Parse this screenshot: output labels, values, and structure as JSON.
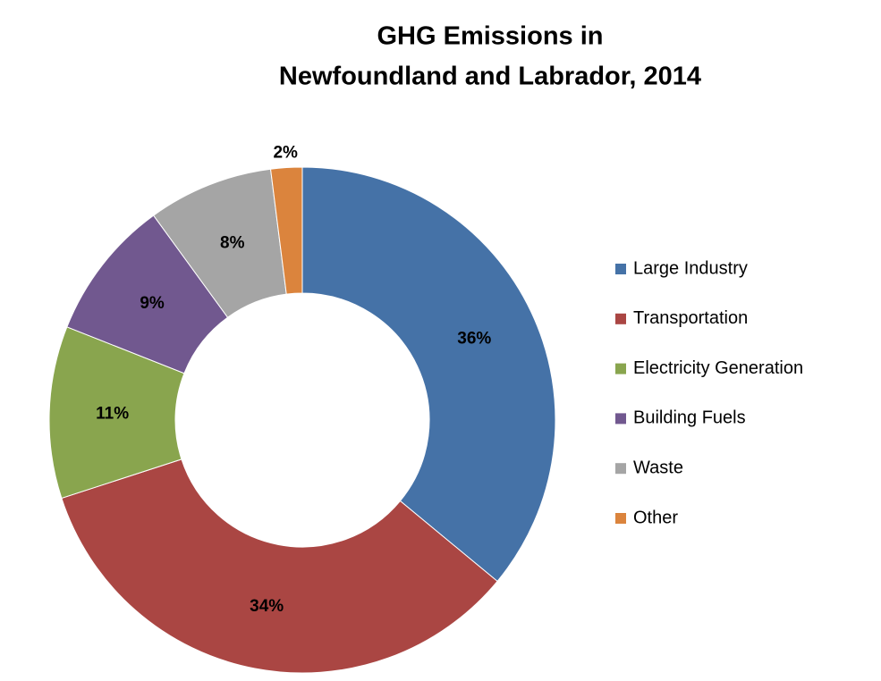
{
  "chart_data": {
    "type": "donut",
    "title": [
      "GHG Emissions in",
      "Newfoundland and Labrador, 2014"
    ],
    "categories": [
      "Large Industry",
      "Transportation",
      "Electricity Generation",
      "Building Fuels",
      "Waste",
      "Other"
    ],
    "values": [
      36,
      34,
      11,
      9,
      8,
      2
    ],
    "value_labels": [
      "36%",
      "34%",
      "11%",
      "9%",
      "8%",
      "2%"
    ],
    "colors": [
      "#4572a7",
      "#aa4643",
      "#89a54e",
      "#71588f",
      "#a5a5a5",
      "#db843d"
    ],
    "legend": "right"
  }
}
